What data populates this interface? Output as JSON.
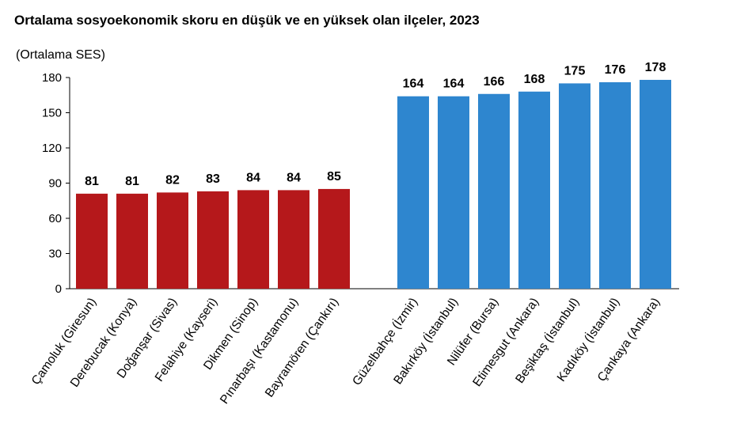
{
  "chart_data": {
    "type": "bar",
    "title": "Ortalama sosyoekonomik skoru en düşük ve en yüksek olan ilçeler, 2023",
    "ylabel": "(Ortalama SES)",
    "xlabel": "",
    "ylim": [
      0,
      180
    ],
    "yticks": [
      "0",
      "30",
      "60",
      "90",
      "120",
      "150",
      "180"
    ],
    "grid": false,
    "groups": [
      {
        "color": "#B5181B",
        "categories": [
          "Çamoluk (Giresun)",
          "Derebucak (Konya)",
          "Doğanşar (Sivas)",
          "Felahiye (Kayseri)",
          "Dikmen (Sinop)",
          "Pınarbaşı (Kastamonu)",
          "Bayramören (Çankırı)"
        ],
        "values": [
          81,
          81,
          82,
          83,
          84,
          84,
          85
        ]
      },
      {
        "color": "#2E86CF",
        "categories": [
          "Güzelbahçe (İzmir)",
          "Bakırköy (İstanbul)",
          "Nilüfer (Bursa)",
          "Etimesgut (Ankara)",
          "Beşiktaş (İstanbul)",
          "Kadıköy (İstanbul)",
          "Çankaya (Ankara)"
        ],
        "values": [
          164,
          164,
          166,
          168,
          175,
          176,
          178
        ]
      }
    ]
  }
}
